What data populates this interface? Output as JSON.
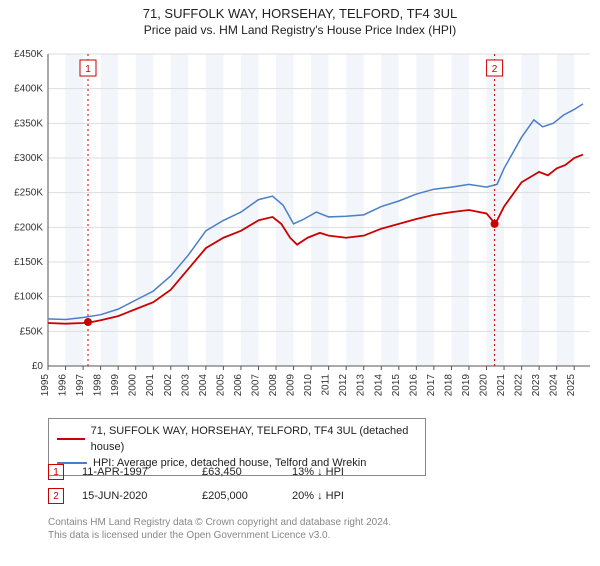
{
  "title": "71, SUFFOLK WAY, HORSEHAY, TELFORD, TF4 3UL",
  "subtitle": "Price paid vs. HM Land Registry's House Price Index (HPI)",
  "chart": {
    "type": "line",
    "background": "#ffffff",
    "alt_band_color": "#f2f6fb",
    "grid_color": "#dddddd",
    "axis_color": "#555555",
    "tick_font_size": 10,
    "x": {
      "min": 1995,
      "max": 2025.9,
      "ticks": [
        1995,
        1996,
        1997,
        1998,
        1999,
        2000,
        2001,
        2002,
        2003,
        2004,
        2005,
        2006,
        2007,
        2008,
        2009,
        2010,
        2011,
        2012,
        2013,
        2014,
        2015,
        2016,
        2017,
        2018,
        2019,
        2020,
        2021,
        2022,
        2023,
        2024,
        2025
      ]
    },
    "y": {
      "min": 0,
      "max": 450000,
      "step": 50000,
      "ticks": [
        "£0",
        "£50K",
        "£100K",
        "£150K",
        "£200K",
        "£250K",
        "£300K",
        "£350K",
        "£400K",
        "£450K"
      ]
    },
    "series": [
      {
        "name": "price-paid",
        "color": "#cc0000",
        "width": 1.8,
        "data": [
          [
            1995.0,
            62000
          ],
          [
            1996.0,
            61000
          ],
          [
            1997.0,
            62000
          ],
          [
            1997.5,
            63450
          ],
          [
            1998.0,
            66000
          ],
          [
            1999.0,
            72000
          ],
          [
            2000.0,
            82000
          ],
          [
            2001.0,
            92000
          ],
          [
            2002.0,
            110000
          ],
          [
            2003.0,
            140000
          ],
          [
            2004.0,
            170000
          ],
          [
            2005.0,
            185000
          ],
          [
            2006.0,
            195000
          ],
          [
            2007.0,
            210000
          ],
          [
            2007.8,
            215000
          ],
          [
            2008.3,
            205000
          ],
          [
            2008.8,
            185000
          ],
          [
            2009.2,
            175000
          ],
          [
            2009.8,
            185000
          ],
          [
            2010.5,
            192000
          ],
          [
            2011.0,
            188000
          ],
          [
            2012.0,
            185000
          ],
          [
            2013.0,
            188000
          ],
          [
            2014.0,
            198000
          ],
          [
            2015.0,
            205000
          ],
          [
            2016.0,
            212000
          ],
          [
            2017.0,
            218000
          ],
          [
            2018.0,
            222000
          ],
          [
            2019.0,
            225000
          ],
          [
            2020.0,
            220000
          ],
          [
            2020.5,
            205000
          ],
          [
            2021.0,
            230000
          ],
          [
            2022.0,
            265000
          ],
          [
            2023.0,
            280000
          ],
          [
            2023.5,
            275000
          ],
          [
            2024.0,
            285000
          ],
          [
            2024.5,
            290000
          ],
          [
            2025.0,
            300000
          ],
          [
            2025.5,
            305000
          ]
        ]
      },
      {
        "name": "hpi",
        "color": "#4a7ec8",
        "width": 1.5,
        "data": [
          [
            1995.0,
            68000
          ],
          [
            1996.0,
            67000
          ],
          [
            1997.0,
            70000
          ],
          [
            1998.0,
            74000
          ],
          [
            1999.0,
            82000
          ],
          [
            2000.0,
            95000
          ],
          [
            2001.0,
            108000
          ],
          [
            2002.0,
            130000
          ],
          [
            2003.0,
            160000
          ],
          [
            2004.0,
            195000
          ],
          [
            2005.0,
            210000
          ],
          [
            2006.0,
            222000
          ],
          [
            2007.0,
            240000
          ],
          [
            2007.8,
            245000
          ],
          [
            2008.4,
            232000
          ],
          [
            2009.0,
            205000
          ],
          [
            2009.6,
            212000
          ],
          [
            2010.3,
            222000
          ],
          [
            2011.0,
            215000
          ],
          [
            2012.0,
            216000
          ],
          [
            2013.0,
            218000
          ],
          [
            2014.0,
            230000
          ],
          [
            2015.0,
            238000
          ],
          [
            2016.0,
            248000
          ],
          [
            2017.0,
            255000
          ],
          [
            2018.0,
            258000
          ],
          [
            2019.0,
            262000
          ],
          [
            2020.0,
            258000
          ],
          [
            2020.6,
            262000
          ],
          [
            2021.0,
            285000
          ],
          [
            2022.0,
            330000
          ],
          [
            2022.7,
            355000
          ],
          [
            2023.2,
            345000
          ],
          [
            2023.8,
            350000
          ],
          [
            2024.4,
            362000
          ],
          [
            2025.0,
            370000
          ],
          [
            2025.5,
            378000
          ]
        ]
      }
    ],
    "trade_lines": [
      {
        "x": 1997.28,
        "label": "1",
        "color": "#cc0000"
      },
      {
        "x": 2020.46,
        "label": "2",
        "color": "#cc0000"
      }
    ],
    "trade_points": [
      {
        "x": 1997.28,
        "y": 63450,
        "color": "#cc0000"
      },
      {
        "x": 2020.46,
        "y": 205000,
        "color": "#cc0000"
      }
    ]
  },
  "legend": {
    "row1": {
      "color": "#cc0000",
      "label": "71, SUFFOLK WAY, HORSEHAY, TELFORD, TF4 3UL (detached house)"
    },
    "row2": {
      "color": "#4a7ec8",
      "label": "HPI: Average price, detached house, Telford and Wrekin"
    }
  },
  "trades": {
    "t1": {
      "num": "1",
      "color": "#cc0000",
      "date": "11-APR-1997",
      "price": "£63,450",
      "delta": "13% ↓ HPI"
    },
    "t2": {
      "num": "2",
      "color": "#cc0000",
      "date": "15-JUN-2020",
      "price": "£205,000",
      "delta": "20% ↓ HPI"
    }
  },
  "footnote": {
    "l1": "Contains HM Land Registry data © Crown copyright and database right 2024.",
    "l2": "This data is licensed under the Open Government Licence v3.0."
  }
}
